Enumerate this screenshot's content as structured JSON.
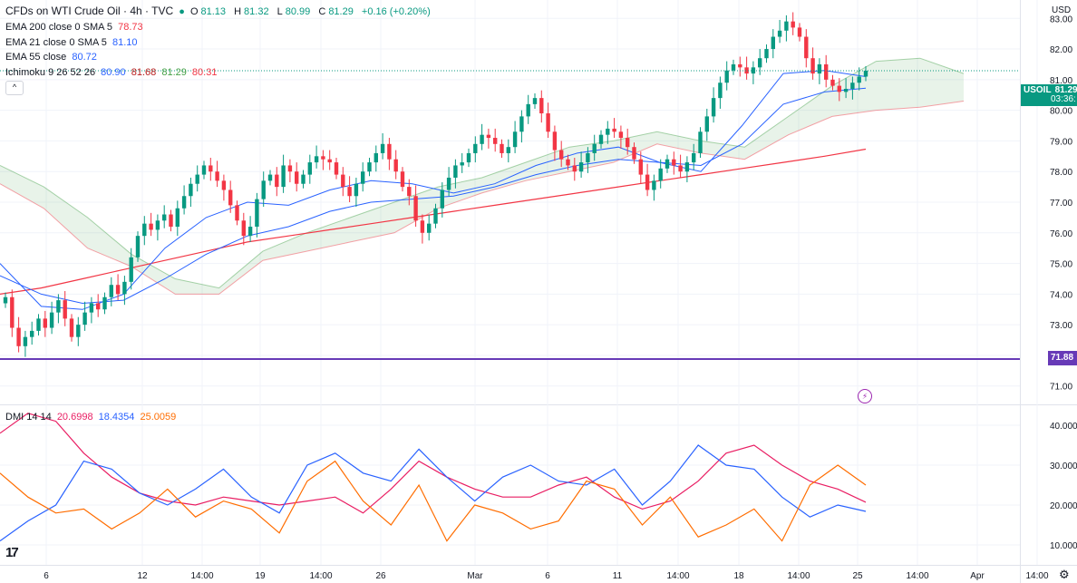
{
  "header": {
    "symbol_title": "CFDs on WTI Crude Oil · 4h · TVC",
    "ohlc": {
      "o_label": "O",
      "o": "81.13",
      "h_label": "H",
      "h": "81.32",
      "l_label": "L",
      "l": "80.99",
      "c_label": "C",
      "c": "81.29",
      "change": "+0.16 (+0.20%)"
    },
    "currency": "USD",
    "collapse_symbol": "^"
  },
  "indicators": {
    "ema200": {
      "label": "EMA 200 close 0 SMA 5",
      "value": "78.73",
      "color": "#f23645"
    },
    "ema21": {
      "label": "EMA 21 close 0 SMA 5",
      "value": "81.10",
      "color": "#2962ff"
    },
    "ema55": {
      "label": "EMA 55 close",
      "value": "80.72",
      "color": "#2962ff"
    },
    "ichimoku": {
      "label": "Ichimoku 9 26 52 26",
      "v1": "80.90",
      "v2": "81.68",
      "v3": "81.29",
      "v4": "80.31",
      "c1": "#2962ff",
      "c2": "#b71c1c",
      "c3": "#43a047",
      "c4": "#f23645"
    },
    "dmi": {
      "label": "DMI 14 14",
      "v1": "20.6998",
      "v2": "18.4354",
      "v3": "25.0059",
      "c1": "#e91e63",
      "c2": "#2962ff",
      "c3": "#ff6d00"
    }
  },
  "price_tags": {
    "current_symbol": "USOIL",
    "current_price": "81.29",
    "countdown": "03:36:",
    "support_price": "71.88",
    "current_color": "#089981",
    "support_color": "#673ab7"
  },
  "icons": {
    "lightning": "lightning-icon",
    "logo": "tradingview-logo",
    "settings": "gear-icon"
  },
  "logo_text": "17",
  "lightning_glyph": "⚡",
  "settings_glyph": "⚙",
  "chart_data": {
    "type": "candlestick",
    "timeframe": "4h",
    "price_axis": {
      "ylim": [
        70.4,
        83.6
      ],
      "ticks": [
        "83.00",
        "82.00",
        "81.00",
        "80.00",
        "79.00",
        "78.00",
        "77.00",
        "76.00",
        "75.00",
        "74.00",
        "73.00",
        "72.00",
        "71.00"
      ]
    },
    "time_axis": {
      "labels": [
        "6",
        "12",
        "14:00",
        "19",
        "14:00",
        "26",
        "Mar",
        "6",
        "11",
        "14:00",
        "18",
        "14:00",
        "25",
        "14:00",
        "Apr",
        "14:00"
      ]
    },
    "support_line": 71.88,
    "candles_close": [
      73.9,
      72.9,
      72.3,
      72.6,
      72.8,
      73.2,
      72.9,
      73.4,
      73.8,
      73.2,
      72.6,
      73.0,
      73.4,
      73.7,
      73.5,
      73.9,
      74.3,
      74.0,
      74.4,
      75.2,
      75.9,
      76.3,
      76.1,
      76.4,
      76.6,
      76.2,
      76.8,
      77.2,
      77.6,
      77.9,
      78.2,
      78.0,
      77.7,
      77.4,
      76.9,
      76.4,
      75.9,
      76.2,
      77.1,
      77.7,
      77.9,
      77.5,
      78.2,
      78.0,
      77.6,
      77.9,
      78.3,
      78.5,
      78.4,
      78.3,
      77.9,
      77.5,
      77.2,
      77.6,
      78.0,
      78.3,
      78.6,
      78.9,
      78.4,
      78.0,
      77.5,
      77.2,
      76.4,
      76.0,
      76.3,
      76.8,
      77.4,
      77.8,
      78.2,
      78.3,
      78.6,
      78.9,
      79.2,
      79.1,
      78.9,
      78.6,
      78.8,
      79.3,
      79.8,
      80.2,
      80.4,
      79.9,
      79.3,
      78.7,
      78.4,
      78.2,
      78.0,
      78.3,
      78.6,
      78.9,
      79.2,
      79.4,
      79.3,
      79.1,
      78.8,
      78.4,
      77.9,
      77.4,
      77.7,
      78.1,
      78.4,
      78.2,
      78.0,
      78.3,
      78.6,
      79.3,
      79.8,
      80.4,
      80.9,
      81.3,
      81.5,
      81.4,
      81.2,
      81.4,
      81.7,
      82.0,
      82.4,
      82.6,
      82.9,
      82.7,
      82.4,
      81.7,
      81.2,
      81.5,
      81.0,
      80.8,
      80.6,
      80.7,
      80.9,
      81.1,
      81.29
    ],
    "series": [
      {
        "name": "EMA 200",
        "values": [
          74.0,
          74.2,
          74.5,
          74.8,
          75.1,
          75.4,
          75.7,
          75.9,
          76.1,
          76.3,
          76.5,
          76.7,
          76.9,
          77.1,
          77.3,
          77.5,
          77.7,
          77.9,
          78.1,
          78.3,
          78.5,
          78.73
        ]
      },
      {
        "name": "EMA 21",
        "values": [
          75.0,
          73.6,
          73.5,
          74.0,
          75.5,
          76.5,
          77.0,
          76.9,
          77.4,
          77.7,
          77.6,
          77.3,
          77.6,
          78.2,
          78.6,
          78.8,
          78.3,
          78.0,
          79.5,
          81.2,
          81.3,
          81.1
        ]
      },
      {
        "name": "EMA 55",
        "values": [
          74.6,
          74.0,
          73.7,
          73.8,
          74.5,
          75.3,
          75.9,
          76.2,
          76.7,
          77.0,
          77.1,
          77.2,
          77.5,
          77.9,
          78.2,
          78.4,
          78.3,
          78.2,
          78.9,
          80.2,
          80.6,
          80.72
        ]
      }
    ],
    "dmi": {
      "ylim": [
        5,
        45
      ],
      "ticks": [
        "40.0000",
        "30.0000",
        "20.0000",
        "10.0000"
      ],
      "series": [
        {
          "name": "DMI 14 14",
          "values": [
            38,
            43,
            41,
            33,
            27,
            23,
            21,
            20,
            22,
            21,
            20,
            21,
            22,
            18,
            24,
            31,
            27,
            24,
            22,
            22,
            25,
            27,
            22,
            19,
            21,
            26,
            33,
            35,
            30,
            26,
            24,
            20.7
          ]
        },
        {
          "name": "DMI 14 14",
          "values": [
            11,
            16,
            20,
            31,
            29,
            23,
            20,
            24,
            29,
            22,
            18,
            30,
            33,
            28,
            26,
            34,
            27,
            21,
            27,
            30,
            26,
            25,
            29,
            20,
            26,
            35,
            30,
            29,
            22,
            17,
            20,
            18.4
          ]
        },
        {
          "name": "DMI 14 14",
          "values": [
            28,
            22,
            18,
            19,
            14,
            18,
            24,
            17,
            21,
            19,
            13,
            26,
            31,
            21,
            15,
            25,
            11,
            20,
            18,
            14,
            16,
            26,
            24,
            15,
            22,
            12,
            15,
            19,
            11,
            25,
            30,
            25.0
          ]
        }
      ]
    }
  }
}
